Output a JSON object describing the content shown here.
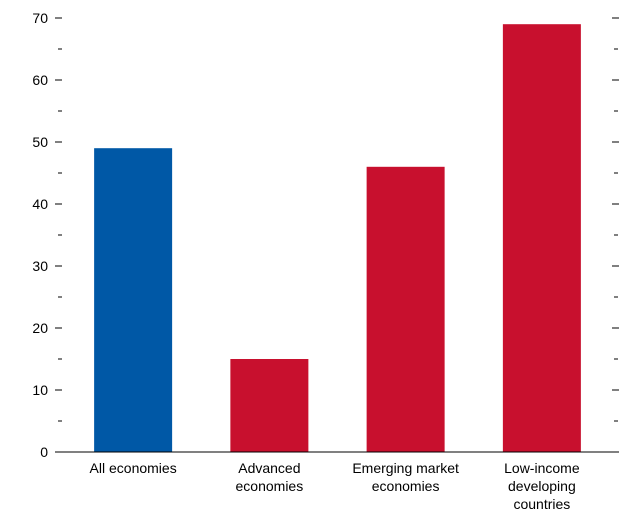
{
  "chart_data": {
    "type": "bar",
    "categories": [
      [
        "All economies"
      ],
      [
        "Advanced",
        "economies"
      ],
      [
        "Emerging market",
        "economies"
      ],
      [
        "Low-income",
        "developing",
        "countries"
      ]
    ],
    "values": [
      49,
      15,
      46,
      69
    ],
    "bar_colors": [
      "#0058a6",
      "#c8102e",
      "#c8102e",
      "#c8102e"
    ],
    "title": "",
    "xlabel": "",
    "ylabel": "",
    "ylim": [
      0,
      70
    ],
    "yticks": [
      0,
      10,
      20,
      30,
      40,
      50,
      60,
      70
    ],
    "ytick_labels": [
      "0",
      "10",
      "20",
      "30",
      "40",
      "50",
      "60",
      "70"
    ],
    "minor_ticks": [
      5,
      15,
      25,
      35,
      45,
      55,
      65
    ],
    "right_axis_ticks": true,
    "grid": false,
    "legend": "none"
  }
}
